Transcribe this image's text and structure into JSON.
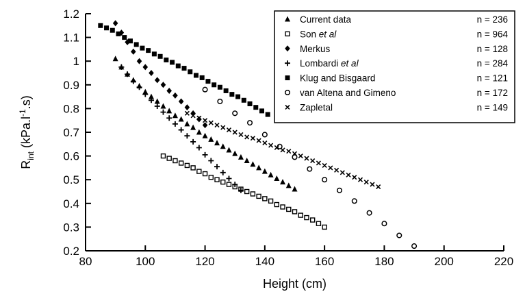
{
  "chart_data": {
    "type": "scatter",
    "xlabel": "Height (cm)",
    "ylabel": {
      "main": "R",
      "sub": "int",
      "rest": " (kPa.l",
      "sup": "-1",
      "tail": ".s)"
    },
    "xlim": [
      80,
      220
    ],
    "ylim": [
      0.2,
      1.2
    ],
    "xticks": [
      "80",
      "100",
      "120",
      "140",
      "160",
      "180",
      "200",
      "220"
    ],
    "yticks": [
      "0.2",
      "0.3",
      "0.4",
      "0.5",
      "0.6",
      "0.7",
      "0.8",
      "0.9",
      "1",
      "1.1",
      "1.2"
    ],
    "grid": false,
    "legend_position": "top-right",
    "series": [
      {
        "name": "Current data",
        "name_italic": "",
        "n_label": "n = 236",
        "marker": "triangle",
        "x": [
          90,
          92,
          94,
          96,
          98,
          100,
          102,
          104,
          106,
          108,
          110,
          112,
          114,
          116,
          118,
          120,
          122,
          124,
          126,
          128,
          130,
          132,
          134,
          136,
          138,
          140,
          142,
          144,
          146,
          148,
          150
        ],
        "y": [
          1.01,
          0.975,
          0.945,
          0.92,
          0.895,
          0.87,
          0.85,
          0.83,
          0.81,
          0.79,
          0.77,
          0.755,
          0.735,
          0.72,
          0.7,
          0.685,
          0.67,
          0.655,
          0.64,
          0.625,
          0.61,
          0.595,
          0.58,
          0.565,
          0.55,
          0.535,
          0.52,
          0.505,
          0.49,
          0.475,
          0.46
        ]
      },
      {
        "name": "Son ",
        "name_italic": "et al",
        "n_label": "n = 964",
        "marker": "open-square",
        "x": [
          106,
          108,
          110,
          112,
          114,
          116,
          118,
          120,
          122,
          124,
          126,
          128,
          130,
          132,
          134,
          136,
          138,
          140,
          142,
          144,
          146,
          148,
          150,
          152,
          154,
          156,
          158,
          160
        ],
        "y": [
          0.6,
          0.59,
          0.58,
          0.57,
          0.56,
          0.55,
          0.535,
          0.525,
          0.51,
          0.5,
          0.49,
          0.48,
          0.47,
          0.46,
          0.45,
          0.44,
          0.43,
          0.42,
          0.41,
          0.395,
          0.385,
          0.375,
          0.365,
          0.35,
          0.34,
          0.33,
          0.315,
          0.3
        ]
      },
      {
        "name": "Merkus",
        "name_italic": "",
        "n_label": "n = 128",
        "marker": "diamond",
        "x": [
          90,
          92,
          94,
          96,
          98,
          100,
          102,
          104,
          106,
          108,
          110,
          112,
          114,
          116,
          118,
          120
        ],
        "y": [
          1.16,
          1.12,
          1.08,
          1.04,
          1.0,
          0.975,
          0.95,
          0.92,
          0.9,
          0.875,
          0.855,
          0.83,
          0.805,
          0.78,
          0.755,
          0.73
        ]
      },
      {
        "name": "Lombardi ",
        "name_italic": "et al",
        "n_label": "n = 284",
        "marker": "plus",
        "x": [
          92,
          94,
          96,
          98,
          100,
          102,
          104,
          106,
          108,
          110,
          112,
          114,
          116,
          118,
          120,
          122,
          124,
          126,
          128,
          130,
          132
        ],
        "y": [
          0.975,
          0.945,
          0.915,
          0.89,
          0.86,
          0.835,
          0.81,
          0.785,
          0.76,
          0.735,
          0.71,
          0.685,
          0.66,
          0.635,
          0.605,
          0.58,
          0.555,
          0.53,
          0.505,
          0.48,
          0.455
        ]
      },
      {
        "name": "Klug and Bisgaard",
        "name_italic": "",
        "n_label": "n = 121",
        "marker": "filled-square",
        "x": [
          85,
          87,
          89,
          91,
          93,
          95,
          97,
          99,
          101,
          103,
          105,
          107,
          109,
          111,
          113,
          115,
          117,
          119,
          121,
          123,
          125,
          127,
          129,
          131,
          133,
          135,
          137,
          139,
          141
        ],
        "y": [
          1.15,
          1.14,
          1.13,
          1.115,
          1.1,
          1.085,
          1.07,
          1.055,
          1.045,
          1.03,
          1.02,
          1.005,
          0.995,
          0.98,
          0.97,
          0.955,
          0.94,
          0.93,
          0.915,
          0.9,
          0.89,
          0.875,
          0.86,
          0.85,
          0.835,
          0.82,
          0.805,
          0.79,
          0.775
        ]
      },
      {
        "name": "van Altena and Gimeno",
        "name_italic": "",
        "n_label": "n = 172",
        "marker": "open-circle",
        "x": [
          120,
          125,
          130,
          135,
          140,
          145,
          150,
          155,
          160,
          165,
          170,
          175,
          180,
          185,
          190
        ],
        "y": [
          0.88,
          0.83,
          0.78,
          0.74,
          0.69,
          0.64,
          0.595,
          0.545,
          0.5,
          0.455,
          0.41,
          0.36,
          0.315,
          0.265,
          0.22
        ]
      },
      {
        "name": "Zapletal",
        "name_italic": "",
        "n_label": "n = 149",
        "marker": "cross",
        "x": [
          114,
          116,
          118,
          120,
          122,
          124,
          126,
          128,
          130,
          132,
          134,
          136,
          138,
          140,
          142,
          144,
          146,
          148,
          150,
          152,
          154,
          156,
          158,
          160,
          162,
          164,
          166,
          168,
          170,
          172,
          174,
          176,
          178
        ],
        "y": [
          0.78,
          0.77,
          0.76,
          0.75,
          0.74,
          0.73,
          0.72,
          0.71,
          0.7,
          0.69,
          0.68,
          0.675,
          0.665,
          0.655,
          0.645,
          0.635,
          0.625,
          0.62,
          0.61,
          0.6,
          0.59,
          0.58,
          0.57,
          0.56,
          0.55,
          0.54,
          0.53,
          0.52,
          0.51,
          0.5,
          0.49,
          0.48,
          0.47
        ]
      }
    ]
  }
}
